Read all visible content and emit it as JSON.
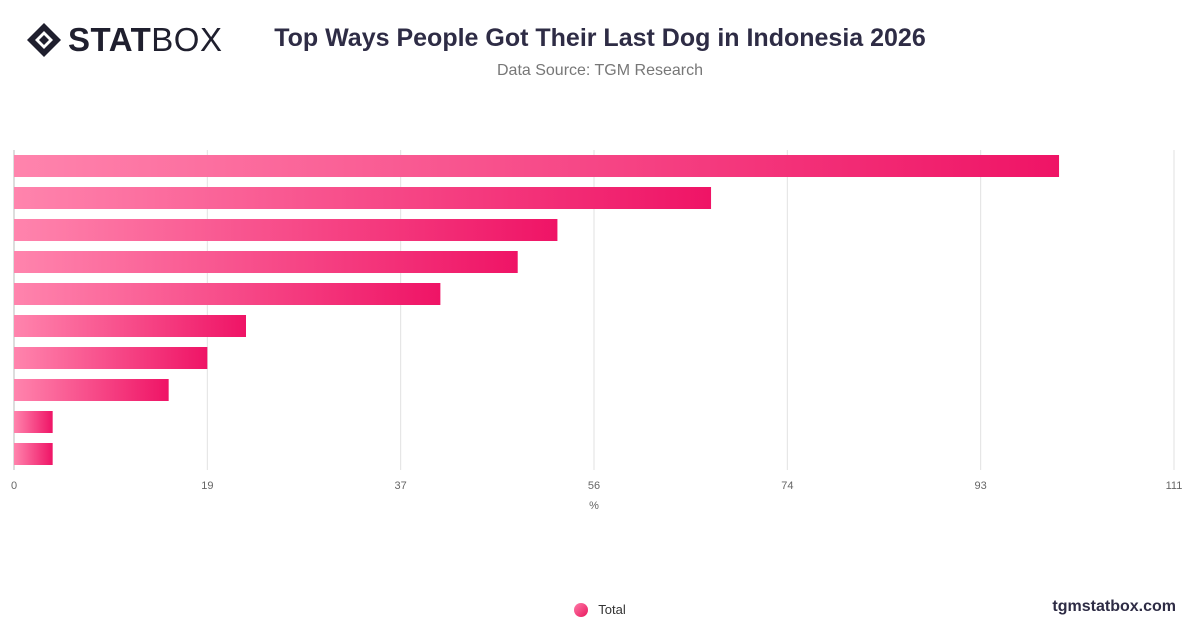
{
  "header": {
    "logo_bold": "STAT",
    "logo_regular": "BOX",
    "title": "Top Ways People Got Their Last Dog in Indonesia 2026",
    "subtitle": "Data Source: TGM Research"
  },
  "footer": {
    "site": "tgmstatbox.com"
  },
  "chart_data": {
    "type": "bar",
    "orientation": "horizontal",
    "categories": [
      "",
      "",
      "",
      "",
      "",
      "",
      "",
      "",
      "",
      ""
    ],
    "series": [
      {
        "name": "Total",
        "values": [
          100,
          66.7,
          52,
          48.2,
          40.8,
          22.2,
          18.5,
          14.8,
          3.7,
          3.7
        ]
      }
    ],
    "xticks": [
      "0",
      "19",
      "37",
      "56",
      "74",
      "93",
      "111"
    ],
    "xlim": [
      0,
      111
    ],
    "xlabel": "%",
    "ylabel": "",
    "grid": true,
    "legend_position": "bottom",
    "colors": {
      "bar_start": "#ff84ad",
      "bar_end": "#ef1466"
    }
  }
}
